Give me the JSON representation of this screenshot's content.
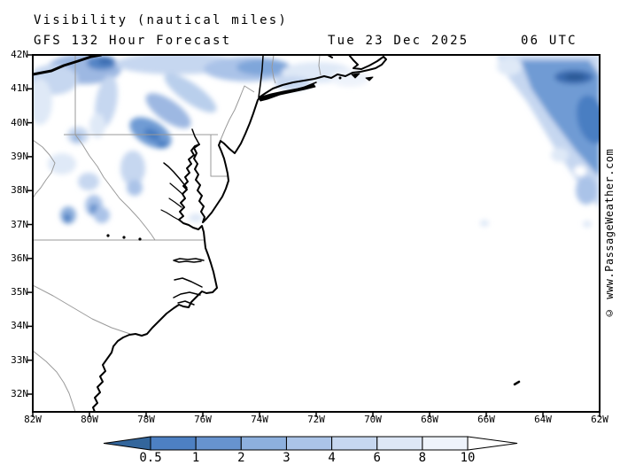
{
  "header": {
    "title": "Visibility (nautical miles)",
    "model_line": "GFS 132 Hour Forecast",
    "valid_date": "Tue 23 Dec 2025",
    "valid_time": "06 UTC"
  },
  "watermark": {
    "text": "© www.PassageWeather.com"
  },
  "map": {
    "lat_labels": [
      "42N",
      "41N",
      "40N",
      "39N",
      "38N",
      "37N",
      "36N",
      "35N",
      "34N",
      "33N",
      "32N"
    ],
    "lon_labels": [
      "82W",
      "80W",
      "78W",
      "76W",
      "74W",
      "72W",
      "70W",
      "68W",
      "66W",
      "64W",
      "62W"
    ]
  },
  "colorbar": {
    "unit": "nautical miles",
    "boundary_labels": [
      "0.5",
      "1",
      "2",
      "3",
      "4",
      "6",
      "8",
      "10"
    ],
    "boundary_values": [
      0.5,
      1,
      2,
      3,
      4,
      6,
      8,
      10
    ],
    "segment_colors": [
      "#4d80c3",
      "#6793cf",
      "#8db0de",
      "#abc4e8",
      "#c6d7f0",
      "#dde7f6",
      "#eef3fb"
    ],
    "below_min_color": "#33669c",
    "above_max_color": "#ffffff"
  },
  "colors": {
    "coastline": "#000000",
    "state_border": "#9a9a9a",
    "map_frame": "#000000",
    "shade_light": "#c6d7f0",
    "shade_medium": "#7fa6da",
    "shade_dark": "#4a7ec2",
    "shade_darkest": "#27548f"
  }
}
